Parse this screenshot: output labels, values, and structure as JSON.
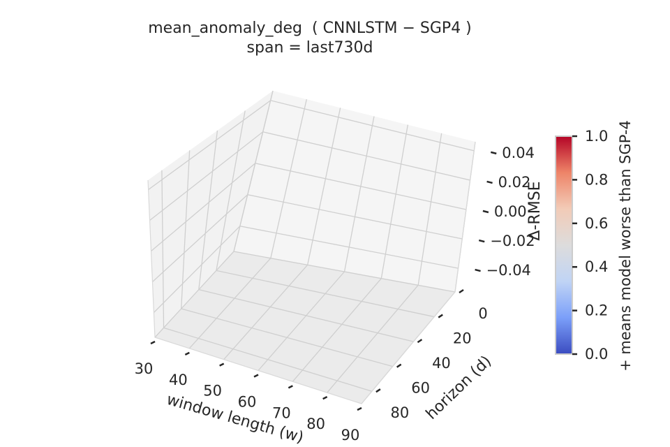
{
  "chart_data": {
    "type": "surface",
    "title": "mean_anomaly_deg  ( CNNLSTM − SGP4 )",
    "subtitle": "span = last730d",
    "xlabel": "window length (w)",
    "ylabel": "horizon (d)",
    "zlabel": "Δ-RMSE",
    "x_ticks": [
      "30",
      "40",
      "50",
      "60",
      "70",
      "80",
      "90"
    ],
    "y_ticks": [
      "0",
      "20",
      "40",
      "60",
      "80"
    ],
    "z_ticks": [
      "−0.04",
      "−0.02",
      "0.00",
      "0.02",
      "0.04"
    ],
    "xlim": [
      30,
      90
    ],
    "ylim": [
      0,
      90
    ],
    "zlim": [
      -0.05,
      0.05
    ],
    "grid": true,
    "series": [],
    "colorbar": {
      "label": "+ means model worse than SGP-4",
      "colormap": "coolwarm",
      "ticks": [
        "0.0",
        "0.2",
        "0.4",
        "0.6",
        "0.8",
        "1.0"
      ],
      "range": [
        0,
        1
      ],
      "colors": [
        "#3b4cc0",
        "#7b9ff9",
        "#c0d4f5",
        "#dddcdc",
        "#f2cbb7",
        "#ee8468",
        "#b40426"
      ]
    }
  },
  "colors": {
    "pane": "#f2f2f2",
    "grid": "#cfcfcf",
    "text": "#262626"
  }
}
